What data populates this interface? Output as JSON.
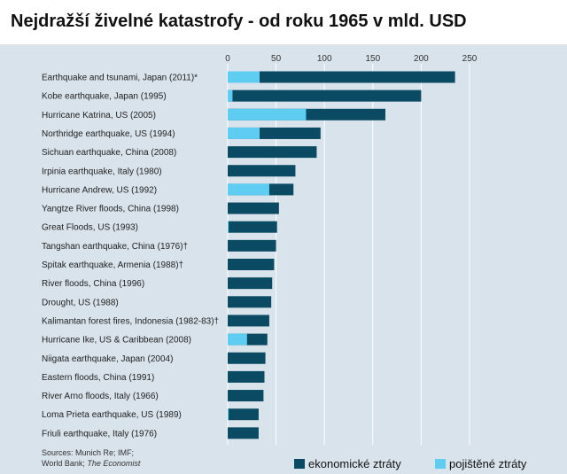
{
  "chart_data": {
    "type": "bar",
    "title": "Nejdražší živelné katastrofy - od roku 1965 v mld. USD",
    "orientation": "horizontal",
    "xlim": [
      0,
      250
    ],
    "xticks": [
      "0",
      "50",
      "100",
      "150",
      "200",
      "250"
    ],
    "grid": true,
    "legend_position": "bottom-right",
    "categories": [
      "Earthquake and tsunami, Japan (2011)*",
      "Kobe earthquake, Japan (1995)",
      "Hurricane Katrina, US (2005)",
      "Northridge earthquake, US (1994)",
      "Sichuan earthquake, China (2008)",
      "Irpinia earthquake, Italy (1980)",
      "Hurricane Andrew, US (1992)",
      "Yangtze River floods, China (1998)",
      "Great Floods, US (1993)",
      "Tangshan earthquake, China (1976)†",
      "Spitak earthquake, Armenia (1988)†",
      "River floods, China (1996)",
      "Drought, US (1988)",
      "Kalimantan forest fires, Indonesia (1982-83)†",
      "Hurricane Ike, US & Caribbean (2008)",
      "Niigata earthquake, Japan (2004)",
      "Eastern floods, China (1991)",
      "River Arno floods, Italy (1966)",
      "Loma Prieta earthquake, US (1989)",
      "Friuli earthquake, Italy (1976)"
    ],
    "series": [
      {
        "name": "ekonomické ztráty",
        "color": "#0b4a63",
        "values": [
          235,
          200,
          163,
          96,
          92,
          70,
          68,
          53,
          51,
          50,
          48,
          46,
          45,
          43,
          41,
          39,
          38,
          37,
          32,
          32
        ]
      },
      {
        "name": "pojištěné ztráty",
        "color": "#5fcdf2",
        "values": [
          33,
          5,
          81,
          33,
          0,
          0,
          43,
          0,
          1,
          0,
          0,
          0,
          0,
          0,
          20,
          0,
          0,
          0,
          1,
          0
        ]
      }
    ],
    "sources": {
      "line1": "Sources: Munich Re; IMF;",
      "line2_prefix": "World Bank; ",
      "line2_italic": "The Economist"
    }
  }
}
